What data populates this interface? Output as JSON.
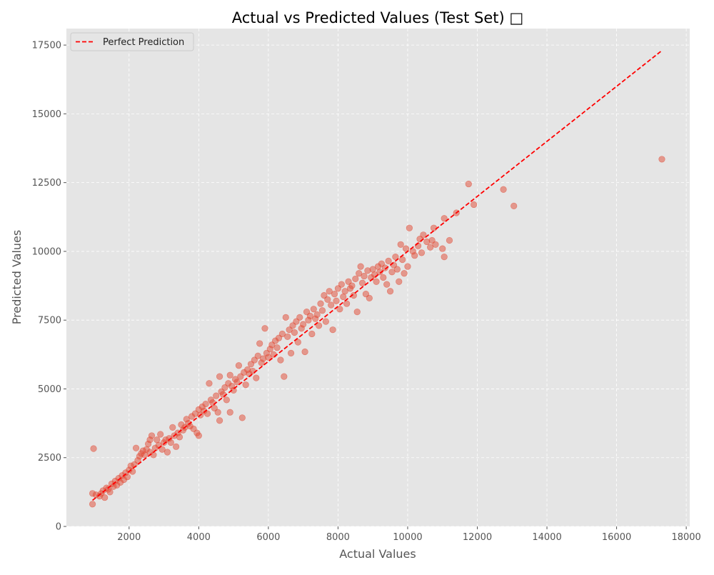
{
  "chart_data": {
    "type": "scatter",
    "title": "Actual vs Predicted Values (Test Set) □",
    "xlabel": "Actual Values",
    "ylabel": "Predicted Values",
    "xlim": [
      200,
      18100
    ],
    "ylim": [
      0,
      18100
    ],
    "xticks": [
      2000,
      4000,
      6000,
      8000,
      10000,
      12000,
      14000,
      16000,
      18000
    ],
    "xtick_labels": [
      "2000",
      "4000",
      "6000",
      "8000",
      "10000",
      "12000",
      "14000",
      "16000",
      "18000"
    ],
    "yticks": [
      0,
      2500,
      5000,
      7500,
      10000,
      12500,
      15000,
      17500
    ],
    "ytick_labels": [
      "0",
      "2500",
      "5000",
      "7500",
      "10000",
      "12500",
      "15000",
      "17500"
    ],
    "grid": true,
    "legend": {
      "position": "top-left",
      "entries": [
        "Perfect Prediction"
      ]
    },
    "reference_line": {
      "name": "Perfect Prediction",
      "x": [
        950,
        17300
      ],
      "y": [
        950,
        17300
      ]
    },
    "colors": {
      "points": "#E24A33",
      "line": "#FF0000",
      "background": "#E5E5E5",
      "grid": "#FFFFFF"
    },
    "series": [
      {
        "points": [
          [
            980,
            2830
          ],
          [
            950,
            810
          ],
          [
            950,
            1200
          ],
          [
            1050,
            1150
          ],
          [
            1150,
            1100
          ],
          [
            1200,
            1200
          ],
          [
            1250,
            1300
          ],
          [
            1300,
            1050
          ],
          [
            1350,
            1400
          ],
          [
            1400,
            1350
          ],
          [
            1450,
            1250
          ],
          [
            1500,
            1550
          ],
          [
            1550,
            1450
          ],
          [
            1600,
            1650
          ],
          [
            1650,
            1500
          ],
          [
            1700,
            1750
          ],
          [
            1750,
            1600
          ],
          [
            1800,
            1850
          ],
          [
            1850,
            1700
          ],
          [
            1900,
            1950
          ],
          [
            1950,
            1800
          ],
          [
            2000,
            2050
          ],
          [
            2050,
            2200
          ],
          [
            2100,
            2000
          ],
          [
            2150,
            2250
          ],
          [
            2200,
            2850
          ],
          [
            2250,
            2400
          ],
          [
            2300,
            2550
          ],
          [
            2350,
            2650
          ],
          [
            2400,
            2750
          ],
          [
            2450,
            2600
          ],
          [
            2500,
            2800
          ],
          [
            2550,
            3000
          ],
          [
            2600,
            3150
          ],
          [
            2600,
            2700
          ],
          [
            2650,
            3300
          ],
          [
            2700,
            2600
          ],
          [
            2750,
            2850
          ],
          [
            2800,
            3150
          ],
          [
            2850,
            2950
          ],
          [
            2900,
            3350
          ],
          [
            2950,
            2800
          ],
          [
            3000,
            3050
          ],
          [
            3050,
            3150
          ],
          [
            3100,
            2700
          ],
          [
            3150,
            3200
          ],
          [
            3200,
            3050
          ],
          [
            3250,
            3600
          ],
          [
            3300,
            3300
          ],
          [
            3350,
            2900
          ],
          [
            3400,
            3400
          ],
          [
            3450,
            3250
          ],
          [
            3500,
            3700
          ],
          [
            3550,
            3500
          ],
          [
            3600,
            3600
          ],
          [
            3650,
            3900
          ],
          [
            3700,
            3750
          ],
          [
            3750,
            3650
          ],
          [
            3800,
            4000
          ],
          [
            3850,
            3550
          ],
          [
            3900,
            4100
          ],
          [
            3950,
            3400
          ],
          [
            4000,
            4250
          ],
          [
            4000,
            3300
          ],
          [
            4050,
            4050
          ],
          [
            4100,
            4350
          ],
          [
            4150,
            4200
          ],
          [
            4200,
            4450
          ],
          [
            4250,
            4100
          ],
          [
            4300,
            5200
          ],
          [
            4350,
            4600
          ],
          [
            4400,
            4500
          ],
          [
            4450,
            4300
          ],
          [
            4500,
            4750
          ],
          [
            4550,
            4150
          ],
          [
            4600,
            5450
          ],
          [
            4600,
            3850
          ],
          [
            4650,
            4900
          ],
          [
            4700,
            4800
          ],
          [
            4750,
            5050
          ],
          [
            4800,
            4600
          ],
          [
            4850,
            5200
          ],
          [
            4900,
            5500
          ],
          [
            4900,
            4150
          ],
          [
            4950,
            5100
          ],
          [
            5000,
            4950
          ],
          [
            5050,
            5350
          ],
          [
            5100,
            5250
          ],
          [
            5150,
            5850
          ],
          [
            5200,
            5450
          ],
          [
            5250,
            3950
          ],
          [
            5300,
            5600
          ],
          [
            5350,
            5150
          ],
          [
            5400,
            5700
          ],
          [
            5450,
            5550
          ],
          [
            5500,
            5900
          ],
          [
            5550,
            5650
          ],
          [
            5600,
            6050
          ],
          [
            5650,
            5400
          ],
          [
            5700,
            6200
          ],
          [
            5750,
            6650
          ],
          [
            5800,
            5950
          ],
          [
            5850,
            6100
          ],
          [
            5900,
            7200
          ],
          [
            5950,
            6300
          ],
          [
            6000,
            6150
          ],
          [
            6050,
            6450
          ],
          [
            6100,
            6600
          ],
          [
            6150,
            6250
          ],
          [
            6200,
            6750
          ],
          [
            6250,
            6500
          ],
          [
            6300,
            6850
          ],
          [
            6350,
            6050
          ],
          [
            6400,
            7000
          ],
          [
            6450,
            5450
          ],
          [
            6500,
            7600
          ],
          [
            6550,
            6900
          ],
          [
            6600,
            7150
          ],
          [
            6650,
            6300
          ],
          [
            6700,
            7300
          ],
          [
            6750,
            7050
          ],
          [
            6800,
            7450
          ],
          [
            6850,
            6700
          ],
          [
            6900,
            7600
          ],
          [
            6950,
            7200
          ],
          [
            7000,
            7350
          ],
          [
            7050,
            6350
          ],
          [
            7100,
            7800
          ],
          [
            7150,
            7500
          ],
          [
            7200,
            7650
          ],
          [
            7250,
            7000
          ],
          [
            7300,
            7900
          ],
          [
            7350,
            7550
          ],
          [
            7400,
            7700
          ],
          [
            7450,
            7300
          ],
          [
            7500,
            8100
          ],
          [
            7550,
            7850
          ],
          [
            7600,
            8400
          ],
          [
            7650,
            7450
          ],
          [
            7700,
            8250
          ],
          [
            7750,
            8550
          ],
          [
            7800,
            8050
          ],
          [
            7850,
            7150
          ],
          [
            7900,
            8450
          ],
          [
            7950,
            8200
          ],
          [
            8000,
            8650
          ],
          [
            8050,
            7900
          ],
          [
            8100,
            8800
          ],
          [
            8150,
            8350
          ],
          [
            8200,
            8550
          ],
          [
            8250,
            8100
          ],
          [
            8300,
            8900
          ],
          [
            8350,
            8650
          ],
          [
            8400,
            8750
          ],
          [
            8450,
            8400
          ],
          [
            8500,
            9000
          ],
          [
            8550,
            7800
          ],
          [
            8600,
            9200
          ],
          [
            8650,
            9450
          ],
          [
            8700,
            8850
          ],
          [
            8750,
            9100
          ],
          [
            8800,
            8450
          ],
          [
            8850,
            9300
          ],
          [
            8900,
            8300
          ],
          [
            8950,
            9050
          ],
          [
            9000,
            9350
          ],
          [
            9050,
            9150
          ],
          [
            9100,
            8900
          ],
          [
            9150,
            9450
          ],
          [
            9200,
            9250
          ],
          [
            9250,
            9550
          ],
          [
            9300,
            9050
          ],
          [
            9350,
            9400
          ],
          [
            9400,
            8800
          ],
          [
            9450,
            9650
          ],
          [
            9500,
            8550
          ],
          [
            9550,
            9250
          ],
          [
            9600,
            9500
          ],
          [
            9650,
            9800
          ],
          [
            9700,
            9350
          ],
          [
            9750,
            8900
          ],
          [
            9800,
            10250
          ],
          [
            9850,
            9700
          ],
          [
            9900,
            9200
          ],
          [
            9950,
            10100
          ],
          [
            10000,
            9450
          ],
          [
            10050,
            10850
          ],
          [
            10150,
            10000
          ],
          [
            10200,
            9850
          ],
          [
            10300,
            10200
          ],
          [
            10350,
            10450
          ],
          [
            10400,
            9950
          ],
          [
            10450,
            10600
          ],
          [
            10550,
            10350
          ],
          [
            10650,
            10150
          ],
          [
            10700,
            10400
          ],
          [
            10750,
            10850
          ],
          [
            10800,
            10250
          ],
          [
            11000,
            10100
          ],
          [
            11050,
            9800
          ],
          [
            11050,
            11200
          ],
          [
            11200,
            10400
          ],
          [
            11400,
            11400
          ],
          [
            11750,
            12450
          ],
          [
            11900,
            11700
          ],
          [
            12750,
            12250
          ],
          [
            13050,
            11650
          ],
          [
            17300,
            13350
          ]
        ]
      }
    ]
  }
}
